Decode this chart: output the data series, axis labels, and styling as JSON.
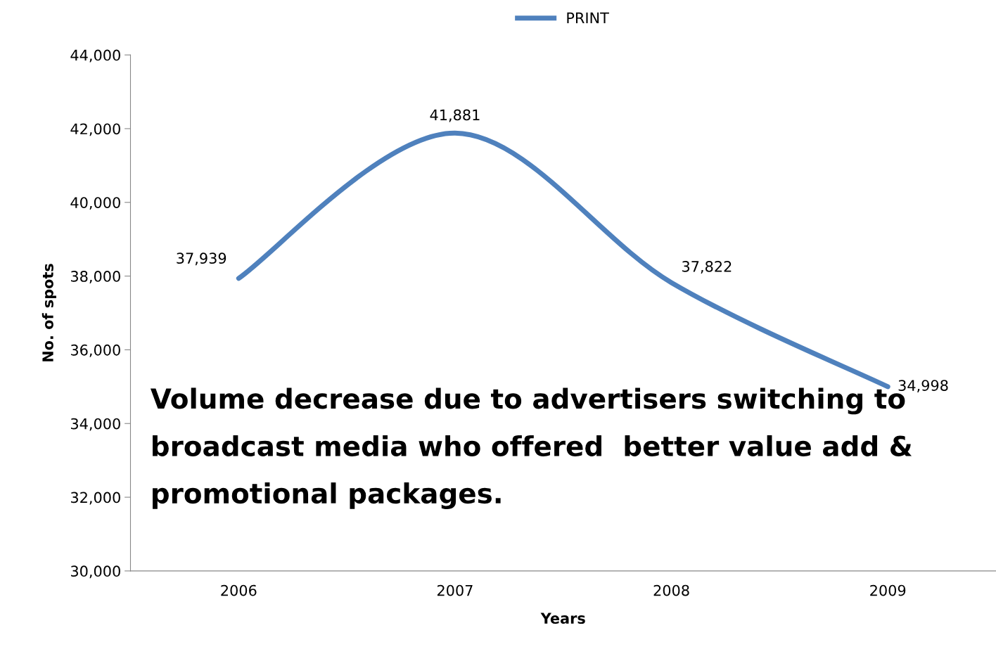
{
  "chart_data": {
    "type": "line",
    "categories": [
      "2006",
      "2007",
      "2008",
      "2009"
    ],
    "series": [
      {
        "name": "PRINT",
        "color": "#4f81bd",
        "values": [
          37939,
          41881,
          37822,
          34998
        ],
        "value_labels": [
          "37,939",
          "41,881",
          "37,822",
          "34,998"
        ]
      }
    ],
    "xlabel": "Years",
    "ylabel": "No. of spots",
    "ylim": [
      30000,
      44000
    ],
    "yticks": [
      {
        "value": 30000,
        "label": "30,000"
      },
      {
        "value": 32000,
        "label": "32,000"
      },
      {
        "value": 34000,
        "label": "34,000"
      },
      {
        "value": 36000,
        "label": "36,000"
      },
      {
        "value": 38000,
        "label": "38,000"
      },
      {
        "value": 40000,
        "label": "40,000"
      },
      {
        "value": 42000,
        "label": "42,000"
      },
      {
        "value": 44000,
        "label": "44,000"
      }
    ],
    "annotations": [
      "Volume decrease due to advertisers switching to broadcast media who offered  better value add & promotional packages."
    ],
    "legend": "top",
    "grid": false,
    "marker": "none",
    "line_style": "solid"
  }
}
